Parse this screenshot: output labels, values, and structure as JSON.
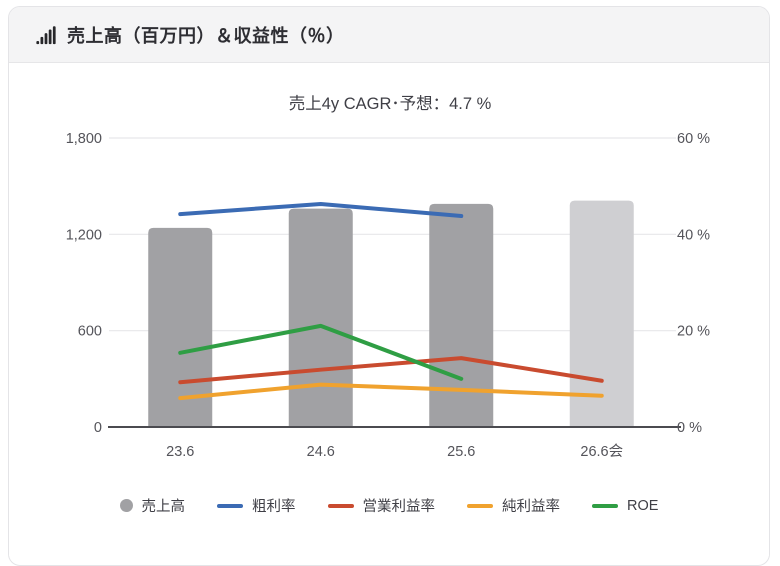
{
  "header": {
    "title": "売上高（百万円）＆収益性（％）",
    "icon": "bar-chart-icon"
  },
  "chart_data": {
    "type": "bar+line-combo",
    "title": "売上4y CAGR･予想：4.7 %",
    "categories": [
      "23.6",
      "24.6",
      "25.6",
      "26.6会"
    ],
    "bar_series": {
      "id": "revenue",
      "name": "売上高",
      "values": [
        1240,
        1360,
        1390,
        1410
      ],
      "colors": [
        "#a1a1a4",
        "#a1a1a4",
        "#a1a1a4",
        "#cfcfd2"
      ],
      "forecast_index": 3
    },
    "line_series": [
      {
        "id": "gross-margin",
        "name": "粗利率",
        "color": "#3b6bb4",
        "values": [
          44.2,
          46.3,
          43.8,
          null
        ]
      },
      {
        "id": "operating-margin",
        "name": "営業利益率",
        "color": "#c94b2f",
        "values": [
          9.3,
          11.9,
          14.3,
          9.6
        ]
      },
      {
        "id": "net-margin",
        "name": "純利益率",
        "color": "#f0a22e",
        "values": [
          6.0,
          8.8,
          7.7,
          6.5
        ]
      },
      {
        "id": "roe",
        "name": "ROE",
        "color": "#2f9e44",
        "values": [
          15.4,
          21.0,
          10.0,
          null
        ]
      }
    ],
    "left_axis": {
      "min": 0,
      "max": 1800,
      "ticks": [
        "0",
        "600",
        "1,200",
        "1,800"
      ]
    },
    "right_axis": {
      "min": 0,
      "max": 60,
      "ticks": [
        "0 %",
        "20 %",
        "40 %",
        "60 %"
      ]
    },
    "grid": true,
    "legend_position": "bottom",
    "colors": {
      "grid_line": "#e7e7e9",
      "axis_line": "#4b4b50",
      "axis_text": "#54545a",
      "title_text": "#3f3f46"
    }
  }
}
